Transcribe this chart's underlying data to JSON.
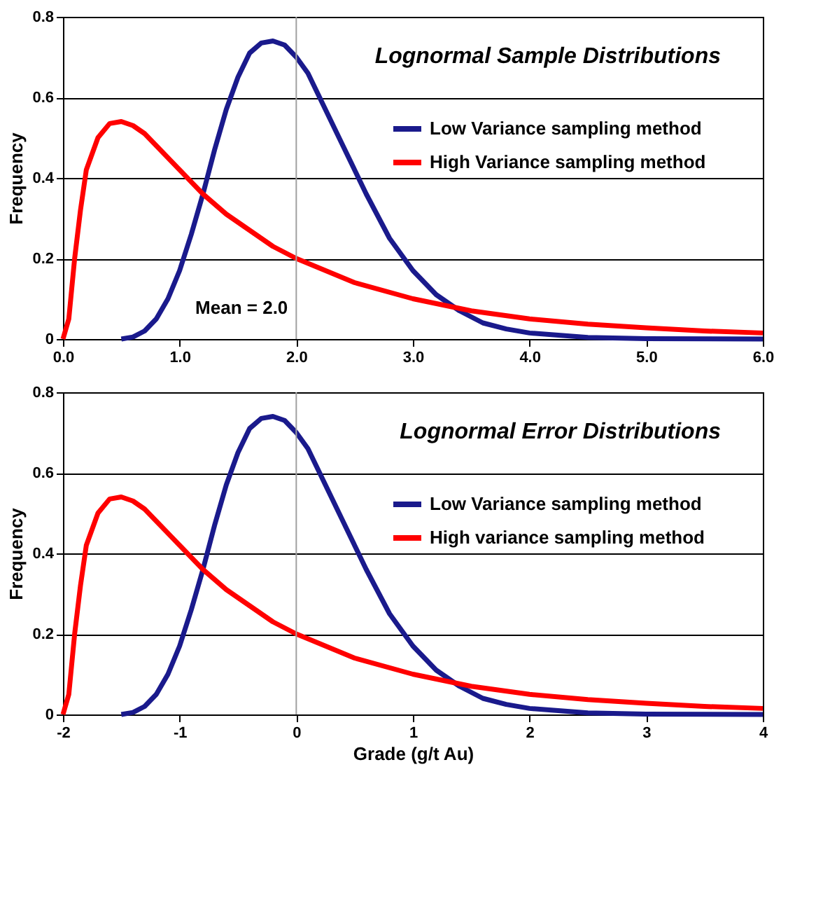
{
  "chart_data": [
    {
      "type": "line",
      "title": "Lognormal Sample Distributions",
      "ylabel": "Frequency",
      "xlim": [
        0,
        6
      ],
      "xticks": [
        {
          "value": 0,
          "label": "0.0"
        },
        {
          "value": 1,
          "label": "1.0"
        },
        {
          "value": 2,
          "label": "2.0"
        },
        {
          "value": 3,
          "label": "3.0"
        },
        {
          "value": 4,
          "label": "4.0"
        },
        {
          "value": 5,
          "label": "5.0"
        },
        {
          "value": 6,
          "label": "6.0"
        }
      ],
      "ylim": [
        0,
        0.8
      ],
      "yticks": [
        0,
        0.2,
        0.4,
        0.6,
        0.8
      ],
      "grid": "y",
      "legend": "top right",
      "marker": "none",
      "line_style": "solid",
      "ref_lines": [
        {
          "axis": "x",
          "value": 2,
          "label": "Mean = 2.0",
          "color": "#a0a0a0"
        }
      ],
      "series": [
        {
          "name": "Low Variance sampling method",
          "color": "#1a1a8c",
          "x": [
            0.5,
            0.6,
            0.7,
            0.8,
            0.9,
            1.0,
            1.1,
            1.2,
            1.3,
            1.4,
            1.5,
            1.6,
            1.7,
            1.8,
            1.9,
            2.0,
            2.1,
            2.2,
            2.4,
            2.6,
            2.8,
            3.0,
            3.2,
            3.4,
            3.6,
            3.8,
            4.0,
            4.5,
            5.0,
            6.0
          ],
          "values": [
            0,
            0.005,
            0.02,
            0.05,
            0.1,
            0.17,
            0.26,
            0.36,
            0.47,
            0.57,
            0.65,
            0.71,
            0.735,
            0.74,
            0.73,
            0.7,
            0.66,
            0.6,
            0.48,
            0.36,
            0.25,
            0.17,
            0.11,
            0.07,
            0.04,
            0.025,
            0.015,
            0.004,
            0.001,
            0
          ]
        },
        {
          "name": "High Variance sampling method",
          "color": "#ff0000",
          "x": [
            0,
            0.05,
            0.1,
            0.15,
            0.2,
            0.3,
            0.4,
            0.5,
            0.6,
            0.7,
            0.8,
            1.0,
            1.2,
            1.4,
            1.6,
            1.8,
            2.0,
            2.5,
            3.0,
            3.5,
            4.0,
            4.5,
            5.0,
            5.5,
            6.0
          ],
          "values": [
            0,
            0.05,
            0.2,
            0.32,
            0.42,
            0.5,
            0.535,
            0.54,
            0.53,
            0.51,
            0.48,
            0.42,
            0.36,
            0.31,
            0.27,
            0.23,
            0.2,
            0.14,
            0.1,
            0.07,
            0.05,
            0.037,
            0.028,
            0.02,
            0.015
          ]
        }
      ]
    },
    {
      "type": "line",
      "title": "Lognormal Error Distributions",
      "ylabel": "Frequency",
      "xlabel": "Grade (g/t Au)",
      "xlim": [
        -2,
        4
      ],
      "xticks": [
        -2,
        -1,
        0,
        1,
        2,
        3,
        4
      ],
      "ylim": [
        0,
        0.8
      ],
      "yticks": [
        0,
        0.2,
        0.4,
        0.6,
        0.8
      ],
      "grid": "y",
      "legend": "top right",
      "marker": "none",
      "line_style": "solid",
      "ref_lines": [
        {
          "axis": "x",
          "value": 0,
          "label": null,
          "color": "#a0a0a0"
        }
      ],
      "series": [
        {
          "name": "Low Variance sampling method",
          "color": "#1a1a8c",
          "x": [
            -1.5,
            -1.4,
            -1.3,
            -1.2,
            -1.1,
            -1.0,
            -0.9,
            -0.8,
            -0.7,
            -0.6,
            -0.5,
            -0.4,
            -0.3,
            -0.2,
            -0.1,
            0,
            0.1,
            0.2,
            0.4,
            0.6,
            0.8,
            1.0,
            1.2,
            1.4,
            1.6,
            1.8,
            2.0,
            2.5,
            3.0,
            4.0
          ],
          "values": [
            0,
            0.005,
            0.02,
            0.05,
            0.1,
            0.17,
            0.26,
            0.36,
            0.47,
            0.57,
            0.65,
            0.71,
            0.735,
            0.74,
            0.73,
            0.7,
            0.66,
            0.6,
            0.48,
            0.36,
            0.25,
            0.17,
            0.11,
            0.07,
            0.04,
            0.025,
            0.015,
            0.004,
            0.001,
            0
          ]
        },
        {
          "name": "High variance sampling method",
          "color": "#ff0000",
          "x": [
            -2,
            -1.95,
            -1.9,
            -1.85,
            -1.8,
            -1.7,
            -1.6,
            -1.5,
            -1.4,
            -1.3,
            -1.2,
            -1.0,
            -0.8,
            -0.6,
            -0.4,
            -0.2,
            0,
            0.5,
            1.0,
            1.5,
            2.0,
            2.5,
            3.0,
            3.5,
            4.0
          ],
          "values": [
            0,
            0.05,
            0.2,
            0.32,
            0.42,
            0.5,
            0.535,
            0.54,
            0.53,
            0.51,
            0.48,
            0.42,
            0.36,
            0.31,
            0.27,
            0.23,
            0.2,
            0.14,
            0.1,
            0.07,
            0.05,
            0.037,
            0.028,
            0.02,
            0.015
          ]
        }
      ]
    }
  ]
}
